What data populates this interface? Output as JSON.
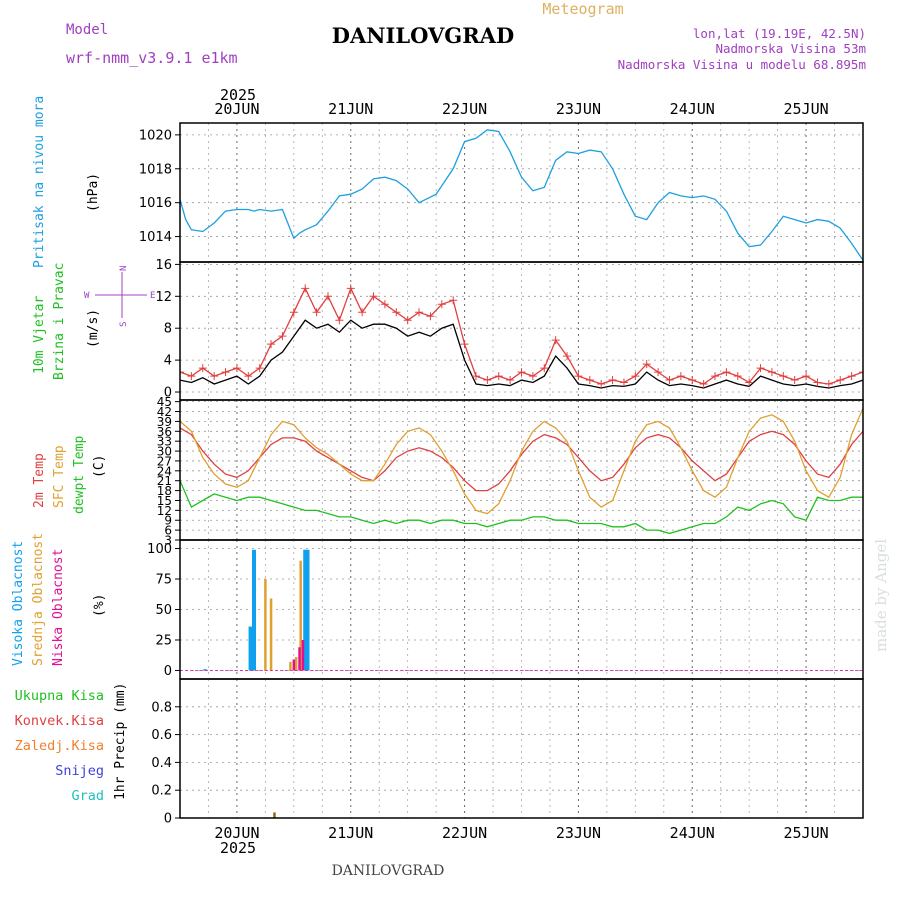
{
  "header": {
    "model_label": "Model",
    "model_name": "wrf-nmm_v3.9.1 e1km",
    "title": "DANILOVGRAD",
    "product": "Meteogram",
    "lonlat": "lon,lat (19.19E, 42.5N)",
    "elevation": "Nadmorska Visina 53m",
    "model_elevation": "Nadmorska Visina u modelu 68.895m",
    "watermark": "made by Angel",
    "footer": "DANILOVGRAD"
  },
  "colors": {
    "pressure": "#1ea0e0",
    "temp2m": "#e04040",
    "sfc_temp": "#e0a030",
    "dewpoint": "#20c020",
    "high_cloud": "#10a0f0",
    "mid_cloud": "#e0a030",
    "low_cloud": "#e01090",
    "grid": "#888888",
    "label_purple": "#a040c0"
  },
  "time_axis": {
    "year": "2025",
    "days": [
      "20JUN",
      "21JUN",
      "22JUN",
      "23JUN",
      "24JUN",
      "25JUN"
    ],
    "start_day": 19.5,
    "end_day": 25.5
  },
  "chart_data": [
    {
      "id": "pressure",
      "type": "line",
      "ylabel_lines": [
        "Pritisak na nivou mora"
      ],
      "unit": "(hPa)",
      "ylim": [
        1012.5,
        1020.7
      ],
      "yticks": [
        1014,
        1016,
        1018,
        1020
      ],
      "grid": true,
      "series": [
        {
          "color_key": "pressure",
          "x": [
            19.5,
            19.55,
            19.6,
            19.7,
            19.8,
            19.9,
            20.0,
            20.1,
            20.15,
            20.2,
            20.3,
            20.4,
            20.5,
            20.55,
            20.6,
            20.7,
            20.8,
            20.9,
            21.0,
            21.1,
            21.2,
            21.3,
            21.4,
            21.5,
            21.6,
            21.75,
            21.9,
            22.0,
            22.1,
            22.2,
            22.3,
            22.4,
            22.5,
            22.6,
            22.7,
            22.8,
            22.9,
            23.0,
            23.1,
            23.2,
            23.3,
            23.4,
            23.5,
            23.6,
            23.7,
            23.8,
            23.9,
            24.0,
            24.1,
            24.2,
            24.3,
            24.4,
            24.5,
            24.6,
            24.7,
            24.8,
            24.9,
            25.0,
            25.1,
            25.2,
            25.3,
            25.4,
            25.5
          ],
          "y": [
            1016.2,
            1015.0,
            1014.4,
            1014.3,
            1014.8,
            1015.5,
            1015.6,
            1015.6,
            1015.5,
            1015.6,
            1015.5,
            1015.6,
            1013.9,
            1014.2,
            1014.4,
            1014.7,
            1015.5,
            1016.4,
            1016.5,
            1016.8,
            1017.4,
            1017.5,
            1017.3,
            1016.8,
            1016.0,
            1016.5,
            1018.0,
            1019.6,
            1019.8,
            1020.3,
            1020.2,
            1019.0,
            1017.5,
            1016.7,
            1016.9,
            1018.5,
            1019.0,
            1018.9,
            1019.1,
            1019.0,
            1018.0,
            1016.5,
            1015.2,
            1015.0,
            1016.0,
            1016.6,
            1016.4,
            1016.3,
            1016.4,
            1016.2,
            1015.5,
            1014.2,
            1013.4,
            1013.5,
            1014.3,
            1015.2,
            1015.0,
            1014.8,
            1015.0,
            1014.9,
            1014.5,
            1013.6,
            1012.6
          ]
        }
      ]
    },
    {
      "id": "wind",
      "type": "line",
      "ylabel_lines": [
        "10m Vjetar",
        "Brzina i Pravac"
      ],
      "unit": "(m/s)",
      "direction_legend": [
        "N",
        "W",
        "E",
        "S"
      ],
      "ylim": [
        -1,
        16.3
      ],
      "yticks": [
        0,
        4,
        8,
        12,
        16
      ],
      "grid": true,
      "series": [
        {
          "name": "speed",
          "color": "#000000",
          "x": [
            19.5,
            19.6,
            19.7,
            19.8,
            19.9,
            20.0,
            20.1,
            20.2,
            20.3,
            20.4,
            20.5,
            20.6,
            20.7,
            20.8,
            20.9,
            21.0,
            21.1,
            21.2,
            21.3,
            21.4,
            21.5,
            21.6,
            21.7,
            21.8,
            21.9,
            22.0,
            22.1,
            22.2,
            22.3,
            22.4,
            22.5,
            22.6,
            22.7,
            22.8,
            22.9,
            23.0,
            23.1,
            23.2,
            23.3,
            23.4,
            23.5,
            23.6,
            23.7,
            23.8,
            23.9,
            24.0,
            24.1,
            24.2,
            24.3,
            24.4,
            24.5,
            24.6,
            24.7,
            24.8,
            24.9,
            25.0,
            25.1,
            25.2,
            25.3,
            25.4,
            25.5
          ],
          "y": [
            1.5,
            1.2,
            1.8,
            1.0,
            1.5,
            2.0,
            1.0,
            2.0,
            4.0,
            5.0,
            7.0,
            9.0,
            8.0,
            8.5,
            7.5,
            9.0,
            8.0,
            8.5,
            8.5,
            8.0,
            7.0,
            7.5,
            7.0,
            8.0,
            8.5,
            4.0,
            1.0,
            0.8,
            1.0,
            0.8,
            1.5,
            1.2,
            2.0,
            4.5,
            3.0,
            1.0,
            0.8,
            0.5,
            0.8,
            0.7,
            1.0,
            2.5,
            1.5,
            0.8,
            1.0,
            0.8,
            0.5,
            1.0,
            1.5,
            1.0,
            0.7,
            2.0,
            1.5,
            1.0,
            0.8,
            1.0,
            0.7,
            0.5,
            0.8,
            1.0,
            1.5
          ]
        },
        {
          "name": "gust",
          "color": "#e04040",
          "x": [
            19.5,
            19.6,
            19.7,
            19.8,
            19.9,
            20.0,
            20.1,
            20.2,
            20.3,
            20.4,
            20.5,
            20.6,
            20.7,
            20.8,
            20.9,
            21.0,
            21.1,
            21.2,
            21.3,
            21.4,
            21.5,
            21.6,
            21.7,
            21.8,
            21.9,
            22.0,
            22.1,
            22.2,
            22.3,
            22.4,
            22.5,
            22.6,
            22.7,
            22.8,
            22.9,
            23.0,
            23.1,
            23.2,
            23.3,
            23.4,
            23.5,
            23.6,
            23.7,
            23.8,
            23.9,
            24.0,
            24.1,
            24.2,
            24.3,
            24.4,
            24.5,
            24.6,
            24.7,
            24.8,
            24.9,
            25.0,
            25.1,
            25.2,
            25.3,
            25.4,
            25.5
          ],
          "y": [
            2.5,
            2.0,
            3.0,
            2.0,
            2.5,
            3.0,
            2.0,
            3.0,
            6.0,
            7.0,
            10.0,
            13.0,
            10.0,
            12.0,
            9.0,
            13.0,
            10.0,
            12.0,
            11.0,
            10.0,
            9.0,
            10.0,
            9.5,
            11.0,
            11.5,
            6.0,
            2.0,
            1.5,
            2.0,
            1.5,
            2.5,
            2.0,
            3.0,
            6.5,
            4.5,
            2.0,
            1.5,
            1.0,
            1.5,
            1.2,
            2.0,
            3.5,
            2.5,
            1.5,
            2.0,
            1.5,
            1.0,
            2.0,
            2.5,
            2.0,
            1.2,
            3.0,
            2.5,
            2.0,
            1.5,
            2.0,
            1.2,
            1.0,
            1.5,
            2.0,
            2.5
          ]
        }
      ]
    },
    {
      "id": "temperature",
      "type": "line",
      "ylabel_lines": [
        "2m Temp",
        "SFC Temp",
        "dewpt Temp"
      ],
      "unit": "(C)",
      "ylim": [
        3,
        45.5
      ],
      "yticks": [
        3,
        6,
        9,
        12,
        15,
        18,
        21,
        24,
        27,
        30,
        33,
        36,
        39,
        42,
        45
      ],
      "grid": true,
      "series": [
        {
          "name": "2m Temp",
          "color_key": "temp2m",
          "x": [
            19.5,
            19.6,
            19.7,
            19.8,
            19.9,
            20.0,
            20.1,
            20.2,
            20.3,
            20.4,
            20.5,
            20.6,
            20.7,
            20.8,
            20.9,
            21.0,
            21.1,
            21.2,
            21.3,
            21.4,
            21.5,
            21.6,
            21.7,
            21.8,
            21.9,
            22.0,
            22.1,
            22.2,
            22.3,
            22.4,
            22.5,
            22.6,
            22.7,
            22.8,
            22.9,
            23.0,
            23.1,
            23.2,
            23.3,
            23.4,
            23.5,
            23.6,
            23.7,
            23.8,
            23.9,
            24.0,
            24.1,
            24.2,
            24.3,
            24.4,
            24.5,
            24.6,
            24.7,
            24.8,
            24.9,
            25.0,
            25.1,
            25.2,
            25.3,
            25.4,
            25.5
          ],
          "y": [
            37,
            35,
            30,
            26,
            23,
            22,
            24,
            28,
            32,
            34,
            34,
            33,
            30,
            28,
            26,
            24,
            22,
            21,
            24,
            28,
            30,
            31,
            30,
            28,
            25,
            21,
            18,
            18,
            20,
            24,
            29,
            33,
            35,
            34,
            32,
            28,
            24,
            21,
            22,
            26,
            31,
            34,
            35,
            34,
            31,
            27,
            24,
            21,
            23,
            28,
            33,
            35,
            36,
            35,
            32,
            27,
            23,
            22,
            26,
            32,
            36
          ]
        },
        {
          "name": "SFC Temp",
          "color_key": "sfc_temp",
          "x": [
            19.5,
            19.6,
            19.7,
            19.8,
            19.9,
            20.0,
            20.1,
            20.2,
            20.3,
            20.4,
            20.5,
            20.6,
            20.7,
            20.8,
            20.9,
            21.0,
            21.1,
            21.2,
            21.3,
            21.4,
            21.5,
            21.6,
            21.7,
            21.8,
            21.9,
            22.0,
            22.1,
            22.2,
            22.3,
            22.4,
            22.5,
            22.6,
            22.7,
            22.8,
            22.9,
            23.0,
            23.1,
            23.2,
            23.3,
            23.4,
            23.5,
            23.6,
            23.7,
            23.8,
            23.9,
            24.0,
            24.1,
            24.2,
            24.3,
            24.4,
            24.5,
            24.6,
            24.7,
            24.8,
            24.9,
            25.0,
            25.1,
            25.2,
            25.3,
            25.4,
            25.5
          ],
          "y": [
            39,
            36,
            28,
            23,
            20,
            19,
            21,
            28,
            35,
            39,
            38,
            34,
            31,
            29,
            26,
            23,
            21,
            21,
            26,
            32,
            36,
            37,
            35,
            30,
            24,
            17,
            12,
            11,
            14,
            21,
            30,
            36,
            39,
            37,
            33,
            24,
            16,
            13,
            15,
            24,
            33,
            38,
            39,
            37,
            31,
            24,
            18,
            16,
            19,
            28,
            36,
            40,
            41,
            39,
            33,
            24,
            18,
            16,
            22,
            35,
            43
          ]
        },
        {
          "name": "dewpt Temp",
          "color_key": "dewpoint",
          "x": [
            19.5,
            19.6,
            19.7,
            19.8,
            19.9,
            20.0,
            20.1,
            20.2,
            20.3,
            20.4,
            20.5,
            20.6,
            20.7,
            20.8,
            20.9,
            21.0,
            21.1,
            21.2,
            21.3,
            21.4,
            21.5,
            21.6,
            21.7,
            21.8,
            21.9,
            22.0,
            22.1,
            22.2,
            22.3,
            22.4,
            22.5,
            22.6,
            22.7,
            22.8,
            22.9,
            23.0,
            23.1,
            23.2,
            23.3,
            23.4,
            23.5,
            23.6,
            23.7,
            23.8,
            23.9,
            24.0,
            24.1,
            24.2,
            24.3,
            24.4,
            24.5,
            24.6,
            24.7,
            24.8,
            24.9,
            25.0,
            25.1,
            25.2,
            25.3,
            25.4,
            25.5
          ],
          "y": [
            21,
            13,
            15,
            17,
            16,
            15,
            16,
            16,
            15,
            14,
            13,
            12,
            12,
            11,
            10,
            10,
            9,
            8,
            9,
            8,
            9,
            9,
            8,
            9,
            9,
            8,
            8,
            7,
            8,
            9,
            9,
            10,
            10,
            9,
            9,
            8,
            8,
            8,
            7,
            7,
            8,
            6,
            6,
            5,
            6,
            7,
            8,
            8,
            10,
            13,
            12,
            14,
            15,
            14,
            10,
            9,
            16,
            15,
            15,
            16,
            16
          ]
        }
      ]
    },
    {
      "id": "clouds",
      "type": "bar",
      "ylabel_lines": [
        "Visoka Oblacnost",
        "Srednja Oblacnost",
        "Niska Oblacnost"
      ],
      "unit": "(%)",
      "ylim": [
        -7,
        107
      ],
      "yticks": [
        0,
        25,
        50,
        75,
        100
      ],
      "grid": true,
      "series": [
        {
          "name": "Visoka Oblacnost",
          "color_key": "high_cloud",
          "x": [
            19.72,
            20.12,
            20.15,
            20.6,
            20.62
          ],
          "values": [
            1,
            36,
            99,
            99,
            99
          ]
        },
        {
          "name": "Srednja Oblacnost",
          "color_key": "mid_cloud",
          "x": [
            20.25,
            20.3,
            20.47,
            20.52,
            20.56
          ],
          "values": [
            75,
            59,
            7,
            11,
            90
          ]
        },
        {
          "name": "Niska Oblacnost",
          "color_key": "low_cloud",
          "x": [
            20.5,
            20.55,
            20.58
          ],
          "values": [
            9,
            19,
            25
          ]
        }
      ]
    },
    {
      "id": "precip",
      "type": "bar",
      "ylabel_lines": [
        "1hr Precip (mm)"
      ],
      "legend": [
        {
          "label": "Ukupna Kisa",
          "color": "#20c020"
        },
        {
          "label": "Konvek.Kisa",
          "color": "#e04040"
        },
        {
          "label": "Zaledj.Kisa",
          "color": "#f08030"
        },
        {
          "label": "Snijeg",
          "color": "#4040e0"
        },
        {
          "label": "Grad",
          "color": "#20c0c0"
        }
      ],
      "ylim": [
        0,
        1.0
      ],
      "yticks": [
        0,
        0.2,
        0.4,
        0.6,
        0.8
      ],
      "grid": true,
      "series": [
        {
          "name": "Ukupna Kisa",
          "color": "#8a6a20",
          "x": [
            20.33
          ],
          "values": [
            0.04
          ]
        }
      ]
    }
  ]
}
